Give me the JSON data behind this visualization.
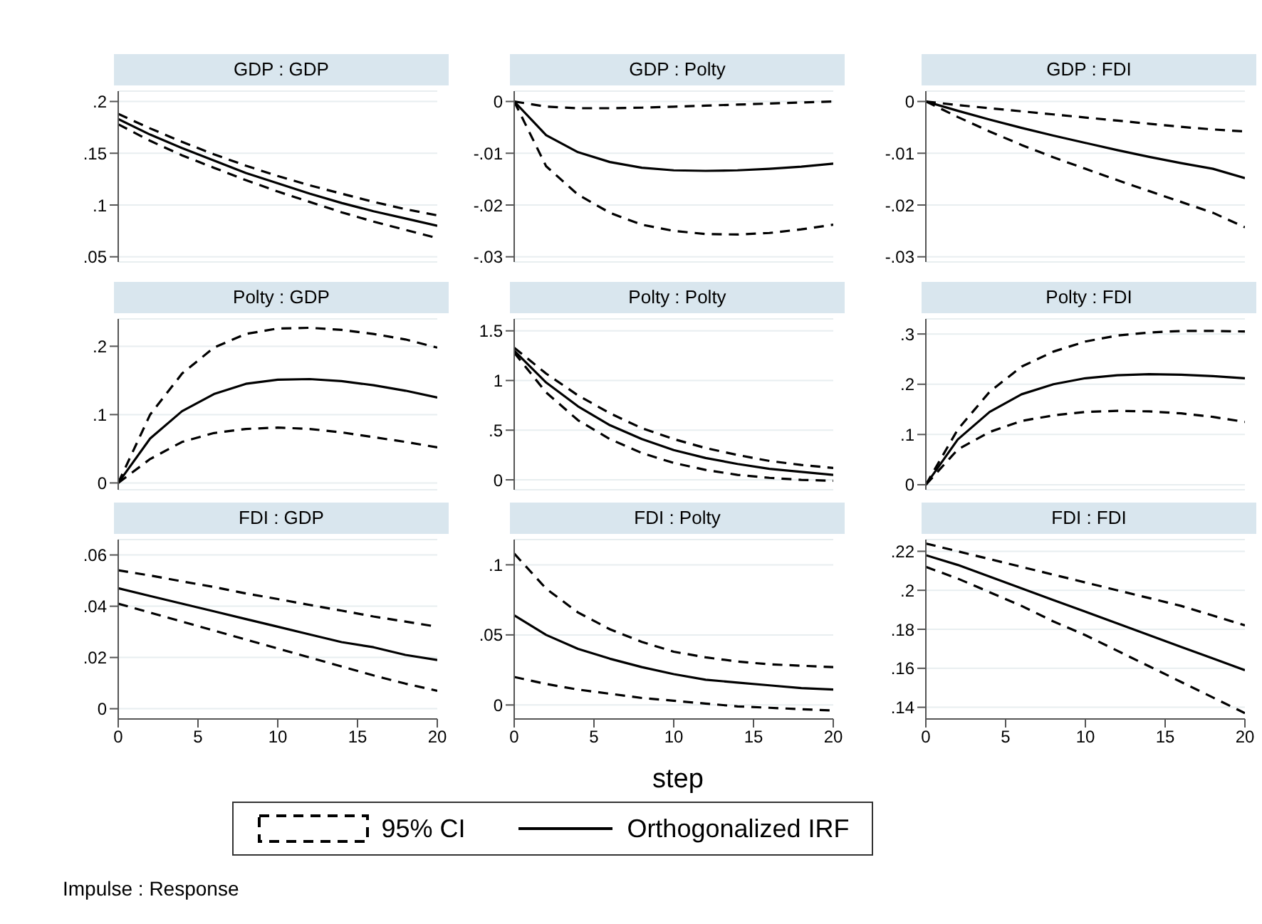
{
  "chart_data": [
    {
      "type": "line",
      "title": "GDP : GDP",
      "x": [
        0,
        2,
        4,
        6,
        8,
        10,
        12,
        14,
        16,
        18,
        20
      ],
      "xlim": [
        0,
        20
      ],
      "xticks": [
        0,
        5,
        10,
        15,
        20
      ],
      "ylim": [
        0.045,
        0.21
      ],
      "yticks": [
        {
          "value": 0.05,
          "label": ".05"
        },
        {
          "value": 0.1,
          "label": ".1"
        },
        {
          "value": 0.15,
          "label": ".15"
        },
        {
          "value": 0.2,
          "label": ".2"
        }
      ],
      "grid": "y",
      "tick_labels": "y",
      "series": [
        {
          "color": "#000000",
          "line_style": "dashed",
          "values": [
            0.188,
            0.174,
            0.161,
            0.149,
            0.138,
            0.128,
            0.119,
            0.111,
            0.103,
            0.096,
            0.09
          ]
        },
        {
          "color": "#000000",
          "line_style": "dashed",
          "values": [
            0.178,
            0.162,
            0.148,
            0.136,
            0.124,
            0.113,
            0.103,
            0.093,
            0.084,
            0.076,
            0.068
          ]
        },
        {
          "color": "#000000",
          "line_style": "solid",
          "values": [
            0.183,
            0.168,
            0.155,
            0.143,
            0.131,
            0.121,
            0.111,
            0.102,
            0.094,
            0.087,
            0.08
          ]
        }
      ]
    },
    {
      "type": "line",
      "title": "GDP : Polty",
      "x": [
        0,
        2,
        4,
        6,
        8,
        10,
        12,
        14,
        16,
        18,
        20
      ],
      "xlim": [
        0,
        20
      ],
      "xticks": [
        0,
        5,
        10,
        15,
        20
      ],
      "ylim": [
        -0.031,
        0.002
      ],
      "yticks": [
        {
          "value": -0.03,
          "label": "-.03"
        },
        {
          "value": -0.02,
          "label": "-.02"
        },
        {
          "value": -0.01,
          "label": "-.01"
        },
        0
      ],
      "grid": "y",
      "tick_labels": "y",
      "series": [
        {
          "color": "#000000",
          "line_style": "dashed",
          "values": [
            0,
            -0.001,
            -0.0013,
            -0.0013,
            -0.0012,
            -0.001,
            -0.0008,
            -0.0006,
            -0.0004,
            -0.0002,
            0
          ]
        },
        {
          "color": "#000000",
          "line_style": "dashed",
          "values": [
            0,
            -0.0125,
            -0.018,
            -0.0215,
            -0.0238,
            -0.025,
            -0.0256,
            -0.0257,
            -0.0254,
            -0.0247,
            -0.0238
          ]
        },
        {
          "color": "#000000",
          "line_style": "solid",
          "values": [
            0,
            -0.0065,
            -0.0098,
            -0.0117,
            -0.0128,
            -0.0133,
            -0.0134,
            -0.0133,
            -0.013,
            -0.0126,
            -0.012
          ]
        }
      ]
    },
    {
      "type": "line",
      "title": "GDP : FDI",
      "x": [
        0,
        2,
        4,
        6,
        8,
        10,
        12,
        14,
        16,
        18,
        20
      ],
      "xlim": [
        0,
        20
      ],
      "xticks": [
        0,
        5,
        10,
        15,
        20
      ],
      "ylim": [
        -0.031,
        0.002
      ],
      "yticks": [
        {
          "value": -0.03,
          "label": "-.03"
        },
        {
          "value": -0.02,
          "label": "-.02"
        },
        {
          "value": -0.01,
          "label": "-.01"
        },
        0
      ],
      "grid": "y",
      "tick_labels": "y",
      "series": [
        {
          "color": "#000000",
          "line_style": "dashed",
          "values": [
            0,
            -0.0007,
            -0.0013,
            -0.0019,
            -0.0025,
            -0.0031,
            -0.0037,
            -0.0043,
            -0.0049,
            -0.0054,
            -0.0058
          ]
        },
        {
          "color": "#000000",
          "line_style": "dashed",
          "values": [
            0,
            -0.003,
            -0.0058,
            -0.0084,
            -0.0108,
            -0.013,
            -0.0152,
            -0.0173,
            -0.0194,
            -0.0215,
            -0.0243
          ]
        },
        {
          "color": "#000000",
          "line_style": "solid",
          "values": [
            0,
            -0.0018,
            -0.0035,
            -0.0051,
            -0.0066,
            -0.008,
            -0.0094,
            -0.0107,
            -0.0119,
            -0.013,
            -0.0148
          ]
        }
      ]
    },
    {
      "type": "line",
      "title": "Polty : GDP",
      "x": [
        0,
        2,
        4,
        6,
        8,
        10,
        12,
        14,
        16,
        18,
        20
      ],
      "xlim": [
        0,
        20
      ],
      "xticks": [
        0,
        5,
        10,
        15,
        20
      ],
      "ylim": [
        -0.01,
        0.24
      ],
      "yticks": [
        0,
        {
          "value": 0.1,
          "label": ".1"
        },
        {
          "value": 0.2,
          "label": ".2"
        }
      ],
      "grid": "y",
      "tick_labels": "y",
      "series": [
        {
          "color": "#000000",
          "line_style": "dashed",
          "values": [
            0,
            0.1,
            0.16,
            0.198,
            0.218,
            0.226,
            0.227,
            0.224,
            0.218,
            0.21,
            0.198
          ]
        },
        {
          "color": "#000000",
          "line_style": "dashed",
          "values": [
            0,
            0.035,
            0.06,
            0.073,
            0.079,
            0.081,
            0.079,
            0.074,
            0.067,
            0.06,
            0.052
          ]
        },
        {
          "color": "#000000",
          "line_style": "solid",
          "values": [
            0,
            0.065,
            0.105,
            0.13,
            0.145,
            0.151,
            0.152,
            0.149,
            0.143,
            0.135,
            0.125
          ]
        }
      ]
    },
    {
      "type": "line",
      "title": "Polty : Polty",
      "x": [
        0,
        2,
        4,
        6,
        8,
        10,
        12,
        14,
        16,
        18,
        20
      ],
      "xlim": [
        0,
        20
      ],
      "xticks": [
        0,
        5,
        10,
        15,
        20
      ],
      "ylim": [
        -0.1,
        1.62
      ],
      "yticks": [
        0,
        {
          "value": 0.5,
          "label": ".5"
        },
        1,
        1.5
      ],
      "grid": "y",
      "tick_labels": "y",
      "series": [
        {
          "color": "#000000",
          "line_style": "dashed",
          "values": [
            1.33,
            1.07,
            0.85,
            0.67,
            0.52,
            0.41,
            0.32,
            0.25,
            0.19,
            0.15,
            0.12
          ]
        },
        {
          "color": "#000000",
          "line_style": "dashed",
          "values": [
            1.28,
            0.88,
            0.6,
            0.41,
            0.27,
            0.17,
            0.1,
            0.05,
            0.02,
            0,
            -0.01
          ]
        },
        {
          "color": "#000000",
          "line_style": "solid",
          "values": [
            1.3,
            0.98,
            0.74,
            0.55,
            0.41,
            0.3,
            0.22,
            0.16,
            0.11,
            0.08,
            0.05
          ]
        }
      ]
    },
    {
      "type": "line",
      "title": "Polty : FDI",
      "x": [
        0,
        2,
        4,
        6,
        8,
        10,
        12,
        14,
        16,
        18,
        20
      ],
      "xlim": [
        0,
        20
      ],
      "xticks": [
        0,
        5,
        10,
        15,
        20
      ],
      "ylim": [
        -0.01,
        0.33
      ],
      "yticks": [
        0,
        {
          "value": 0.1,
          "label": ".1"
        },
        {
          "value": 0.2,
          "label": ".2"
        },
        {
          "value": 0.3,
          "label": ".3"
        }
      ],
      "grid": "y",
      "tick_labels": "y",
      "series": [
        {
          "color": "#000000",
          "line_style": "dashed",
          "values": [
            0,
            0.11,
            0.185,
            0.235,
            0.265,
            0.285,
            0.297,
            0.303,
            0.306,
            0.306,
            0.305
          ]
        },
        {
          "color": "#000000",
          "line_style": "dashed",
          "values": [
            0,
            0.07,
            0.105,
            0.127,
            0.138,
            0.145,
            0.147,
            0.146,
            0.142,
            0.135,
            0.125
          ]
        },
        {
          "color": "#000000",
          "line_style": "solid",
          "values": [
            0,
            0.09,
            0.145,
            0.18,
            0.2,
            0.212,
            0.218,
            0.22,
            0.219,
            0.216,
            0.212
          ]
        }
      ]
    },
    {
      "type": "line",
      "title": "FDI : GDP",
      "x": [
        0,
        2,
        4,
        6,
        8,
        10,
        12,
        14,
        16,
        18,
        20
      ],
      "xlim": [
        0,
        20
      ],
      "xticks": [
        0,
        5,
        10,
        15,
        20
      ],
      "ylim": [
        -0.004,
        0.066
      ],
      "yticks": [
        0,
        {
          "value": 0.02,
          "label": ".02"
        },
        {
          "value": 0.04,
          "label": ".04"
        },
        {
          "value": 0.06,
          "label": ".06"
        }
      ],
      "grid": "y",
      "series": [
        {
          "color": "#000000",
          "line_style": "dashed",
          "values": [
            0.054,
            0.052,
            0.0497,
            0.0475,
            0.045,
            0.0428,
            0.0405,
            0.0383,
            0.036,
            0.034,
            0.032
          ]
        },
        {
          "color": "#000000",
          "line_style": "dashed",
          "values": [
            0.041,
            0.0375,
            0.034,
            0.0305,
            0.027,
            0.0235,
            0.02,
            0.0165,
            0.013,
            0.0098,
            0.007
          ]
        },
        {
          "color": "#000000",
          "line_style": "solid",
          "values": [
            0.047,
            0.044,
            0.041,
            0.038,
            0.035,
            0.032,
            0.029,
            0.026,
            0.024,
            0.021,
            0.019
          ]
        }
      ]
    },
    {
      "type": "line",
      "title": "FDI : Polty",
      "xlabel": "step",
      "annotations": [
        "Impulse : Response"
      ],
      "legend": "bottom",
      "x": [
        0,
        2,
        4,
        6,
        8,
        10,
        12,
        14,
        16,
        18,
        20
      ],
      "xlim": [
        0,
        20
      ],
      "xticks": [
        0,
        5,
        10,
        15,
        20
      ],
      "ylim": [
        -0.01,
        0.118
      ],
      "yticks": [
        0,
        {
          "value": 0.05,
          "label": ".05"
        },
        {
          "value": 0.1,
          "label": ".1"
        }
      ],
      "grid": "y",
      "series": [
        {
          "name": "95% CI",
          "color": "#000000",
          "line_style": "dashed",
          "values": [
            0.108,
            0.083,
            0.066,
            0.054,
            0.045,
            0.038,
            0.034,
            0.031,
            0.029,
            0.028,
            0.027
          ]
        },
        {
          "color": "#000000",
          "line_style": "dashed",
          "values": [
            0.02,
            0.015,
            0.011,
            0.008,
            0.005,
            0.003,
            0.001,
            -0.001,
            -0.002,
            -0.003,
            -0.004
          ]
        },
        {
          "name": "Orthogonalized IRF",
          "color": "#000000",
          "line_style": "solid",
          "values": [
            0.064,
            0.05,
            0.04,
            0.033,
            0.027,
            0.022,
            0.018,
            0.016,
            0.014,
            0.012,
            0.011
          ]
        }
      ]
    },
    {
      "type": "line",
      "title": "FDI : FDI",
      "x": [
        0,
        2,
        4,
        6,
        8,
        10,
        12,
        14,
        16,
        18,
        20
      ],
      "xlim": [
        0,
        20
      ],
      "xticks": [
        0,
        5,
        10,
        15,
        20
      ],
      "ylim": [
        0.134,
        0.226
      ],
      "yticks": [
        {
          "value": 0.14,
          "label": ".14"
        },
        {
          "value": 0.16,
          "label": ".16"
        },
        {
          "value": 0.18,
          "label": ".18"
        },
        {
          "value": 0.2,
          "label": ".2"
        },
        {
          "value": 0.22,
          "label": ".22"
        }
      ],
      "grid": "y",
      "series": [
        {
          "color": "#000000",
          "line_style": "dashed",
          "values": [
            0.224,
            0.22,
            0.216,
            0.212,
            0.208,
            0.204,
            0.2,
            0.196,
            0.192,
            0.187,
            0.182
          ]
        },
        {
          "color": "#000000",
          "line_style": "dashed",
          "values": [
            0.212,
            0.206,
            0.199,
            0.192,
            0.184,
            0.177,
            0.169,
            0.161,
            0.153,
            0.145,
            0.137
          ]
        },
        {
          "color": "#000000",
          "line_style": "solid",
          "values": [
            0.218,
            0.213,
            0.207,
            0.201,
            0.195,
            0.189,
            0.183,
            0.177,
            0.171,
            0.165,
            0.159
          ]
        }
      ]
    }
  ]
}
